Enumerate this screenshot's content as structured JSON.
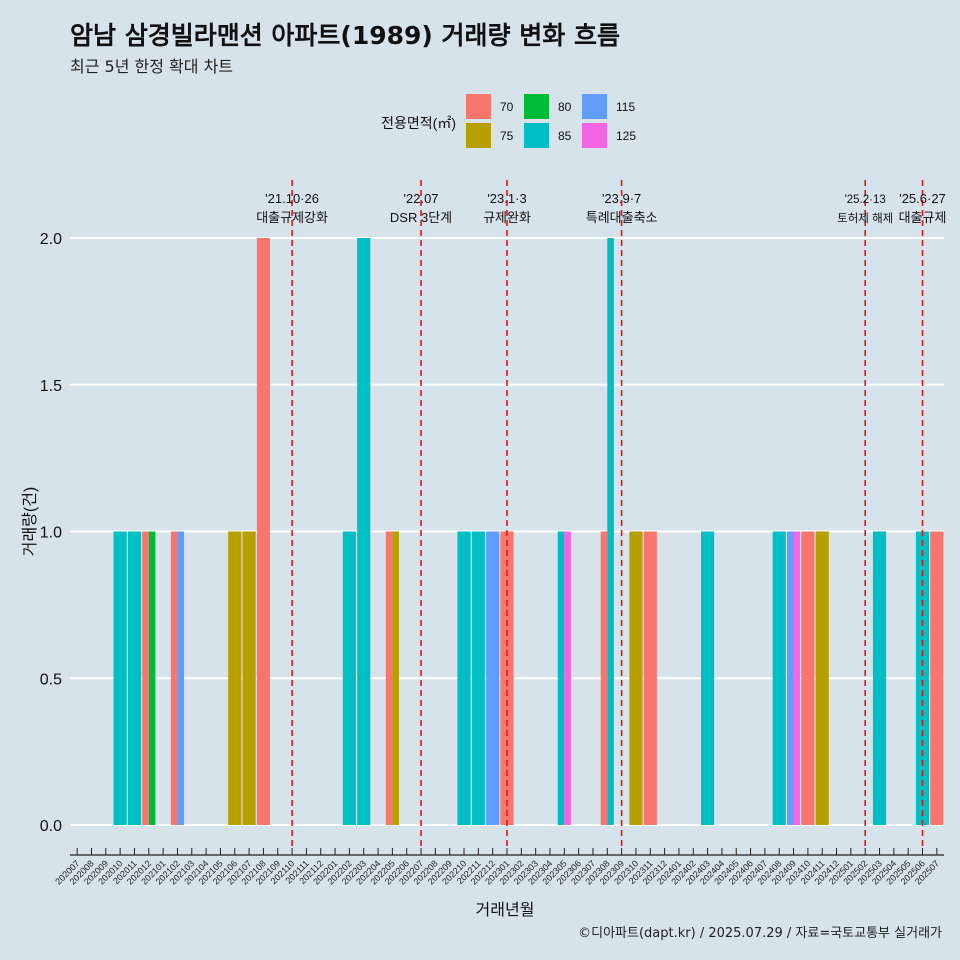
{
  "header": {
    "title": "암남 삼경빌라맨션 아파트(1989) 거래량 변화 흐름",
    "subtitle": "최근 5년 한정 확대 차트"
  },
  "caption": "©디아파트(dapt.kr) / 2025.07.29 / 자료=국토교통부 실거래가",
  "chart_data": {
    "type": "bar",
    "xlabel": "거래년월",
    "ylabel": "거래량(건)",
    "ylim": [
      0,
      2
    ],
    "yticks": [
      "0.0",
      "0.5",
      "1.0",
      "1.5",
      "2.0"
    ],
    "legend": {
      "title": "전용면적(㎡)",
      "position": "top",
      "items": [
        {
          "label": "70",
          "color": "#F8766D"
        },
        {
          "label": "75",
          "color": "#B79F00"
        },
        {
          "label": "80",
          "color": "#00BA38"
        },
        {
          "label": "85",
          "color": "#00BFC4"
        },
        {
          "label": "115",
          "color": "#619CFF"
        },
        {
          "label": "125",
          "color": "#F564E3"
        }
      ]
    },
    "categories": [
      "202007",
      "202008",
      "202009",
      "202010",
      "202011",
      "202012",
      "202101",
      "202102",
      "202103",
      "202104",
      "202105",
      "202106",
      "202107",
      "202108",
      "202109",
      "202110",
      "202111",
      "202112",
      "202201",
      "202202",
      "202203",
      "202204",
      "202205",
      "202206",
      "202207",
      "202208",
      "202209",
      "202210",
      "202211",
      "202212",
      "202301",
      "202302",
      "202303",
      "202304",
      "202305",
      "202306",
      "202307",
      "202308",
      "202309",
      "202310",
      "202311",
      "202312",
      "202401",
      "202402",
      "202403",
      "202404",
      "202405",
      "202406",
      "202407",
      "202408",
      "202409",
      "202410",
      "202411",
      "202412",
      "202501",
      "202502",
      "202503",
      "202504",
      "202505",
      "202506",
      "202507"
    ],
    "bars": [
      {
        "month": "202010",
        "area": "85",
        "value": 1
      },
      {
        "month": "202011",
        "area": "85",
        "value": 1
      },
      {
        "month": "202012",
        "area": "70",
        "value": 1
      },
      {
        "month": "202012",
        "area": "80",
        "value": 1
      },
      {
        "month": "202102",
        "area": "70",
        "value": 1
      },
      {
        "month": "202102",
        "area": "115",
        "value": 1
      },
      {
        "month": "202106",
        "area": "75",
        "value": 1
      },
      {
        "month": "202107",
        "area": "75",
        "value": 1
      },
      {
        "month": "202108",
        "area": "70",
        "value": 2
      },
      {
        "month": "202202",
        "area": "85",
        "value": 1
      },
      {
        "month": "202203",
        "area": "85",
        "value": 2
      },
      {
        "month": "202205",
        "area": "70",
        "value": 1
      },
      {
        "month": "202205",
        "area": "75",
        "value": 1
      },
      {
        "month": "202210",
        "area": "85",
        "value": 1
      },
      {
        "month": "202211",
        "area": "85",
        "value": 1
      },
      {
        "month": "202212",
        "area": "115",
        "value": 1
      },
      {
        "month": "202301",
        "area": "70",
        "value": 1
      },
      {
        "month": "202305",
        "area": "85",
        "value": 1
      },
      {
        "month": "202305",
        "area": "125",
        "value": 1
      },
      {
        "month": "202308",
        "area": "70",
        "value": 1
      },
      {
        "month": "202308",
        "area": "85",
        "value": 2
      },
      {
        "month": "202310",
        "area": "75",
        "value": 1
      },
      {
        "month": "202311",
        "area": "70",
        "value": 1
      },
      {
        "month": "202403",
        "area": "85",
        "value": 1
      },
      {
        "month": "202408",
        "area": "85",
        "value": 1
      },
      {
        "month": "202409",
        "area": "115",
        "value": 1
      },
      {
        "month": "202409",
        "area": "125",
        "value": 1
      },
      {
        "month": "202410",
        "area": "70",
        "value": 1
      },
      {
        "month": "202411",
        "area": "75",
        "value": 1
      },
      {
        "month": "202503",
        "area": "85",
        "value": 1
      },
      {
        "month": "202506",
        "area": "85",
        "value": 1
      },
      {
        "month": "202507",
        "area": "70",
        "value": 1
      }
    ],
    "annotations": [
      {
        "month": "202110",
        "date": "'21.10·26",
        "label": "대출규제강화",
        "emph": true
      },
      {
        "month": "202207",
        "date": "'22.07",
        "label": "DSR 3단계",
        "emph": true
      },
      {
        "month": "202301",
        "date": "'23.1·3",
        "label": "규제완화",
        "emph": true
      },
      {
        "month": "202309",
        "date": "'23.9·7",
        "label": "특례대출축소",
        "emph": true
      },
      {
        "month": "202502",
        "date": "'25.2·13",
        "label": "토허제 해제",
        "emph": false
      },
      {
        "month": "202506",
        "date": "'25.6·27",
        "label": "대출규제",
        "emph": true
      }
    ]
  }
}
